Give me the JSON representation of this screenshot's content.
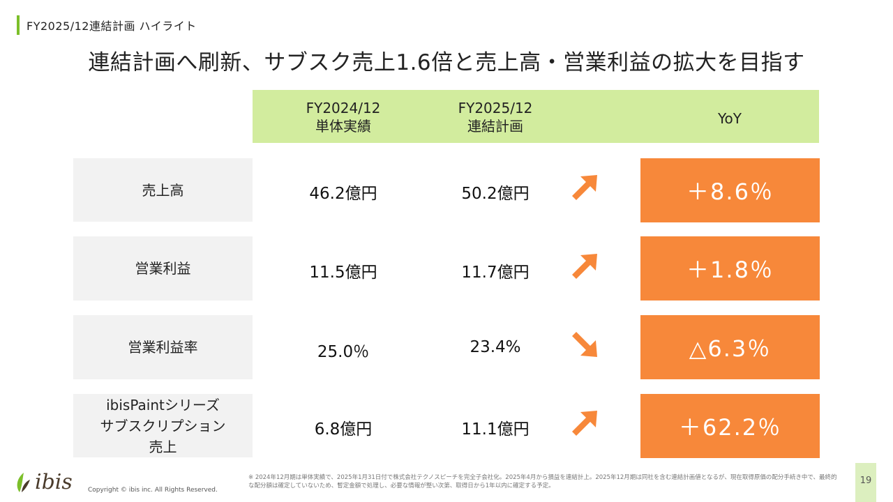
{
  "header": {
    "breadcrumb": "FY2025/12連結計画 ハイライト",
    "title": "連結計画へ刷新、サブスク売上1.6倍と売上高・営業利益の拡大を目指す",
    "accent_color": "#7cbf2a"
  },
  "table": {
    "columns": [
      {
        "line1": "FY2024/12",
        "line2": "単体実績"
      },
      {
        "line1": "FY2025/12",
        "line2": "連結計画"
      },
      {
        "line1": "YoY",
        "line2": ""
      }
    ],
    "header_color": "#d2ec9e",
    "yoy_color": "#f7883a",
    "rows": [
      {
        "label_lines": [
          "売上高"
        ],
        "fy2024": "46.2億円",
        "fy2025": "50.2億円",
        "trend": "up",
        "yoy": "＋8.6％"
      },
      {
        "label_lines": [
          "営業利益"
        ],
        "fy2024": "11.5億円",
        "fy2025": "11.7億円",
        "trend": "up",
        "yoy": "＋1.8％"
      },
      {
        "label_lines": [
          "営業利益率"
        ],
        "fy2024": "25.0％",
        "fy2025": "23.4%",
        "trend": "down",
        "yoy": "△6.3％"
      },
      {
        "label_lines": [
          "ibisPaintシリーズ",
          "サブスクリプション",
          "売上"
        ],
        "fy2024": "6.8億円",
        "fy2025": "11.1億円",
        "trend": "up",
        "yoy": "＋62.2％"
      }
    ]
  },
  "footer": {
    "logo_text": "ibis",
    "copyright": "Copyright © ibis inc. All Rights Reserved.",
    "note": "※ 2024年12月期は単体実績で、2025年1月31日付で株式会社テクノスピーチを完全子会社化。2025年4月から損益を連結計上。2025年12月期は同社を含む連結計画値となるが、現在取得原価の配分手続き中で、最終的な配分額は確定していないため、暫定金額で処理し、必要な情報が整い次第、取得日から1年以内に確定する予定。",
    "page_number": "19"
  }
}
